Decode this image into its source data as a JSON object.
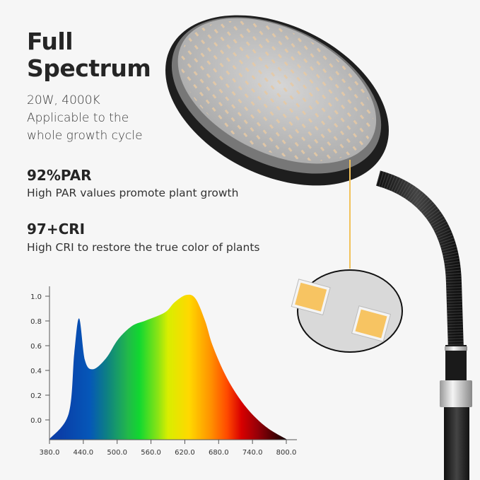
{
  "heading": {
    "line1": "Full",
    "line2": "Spectrum"
  },
  "subtitle": {
    "line1": "20W, 4000K",
    "line2": "Applicable to the",
    "line3": "whole growth cycle"
  },
  "features": [
    {
      "title": "92%PAR",
      "text": "High PAR values promote plant growth"
    },
    {
      "title": "97+CRI",
      "text": "High CRI to restore the true color of plants"
    }
  ],
  "colors": {
    "background": "#f6f6f6",
    "callout_line": "#f2c25a",
    "led": "#f7c462",
    "lamp_body": "#1e1e1e"
  },
  "icons": [
    "lamp-head-illustration",
    "gooseneck-illustration",
    "led-closeup-illustration"
  ],
  "chart_data": {
    "type": "area",
    "title": "",
    "xlabel": "",
    "ylabel": "",
    "xlim": [
      380,
      800
    ],
    "ylim": [
      -0.16,
      1.05
    ],
    "x_ticks": [
      "380.0",
      "440.0",
      "500.0",
      "560.0",
      "620.0",
      "680.0",
      "740.0",
      "800.0"
    ],
    "y_ticks": [
      "0.0",
      "0.2",
      "0.4",
      "0.6",
      "0.8",
      "1.0"
    ],
    "grid": false,
    "fill": "visible-spectrum gradient",
    "x": [
      380,
      414,
      424,
      432.6,
      443,
      457.7,
      480.6,
      501.5,
      526.5,
      551.6,
      585,
      601.7,
      622.5,
      639,
      656,
      668.6,
      689,
      710,
      731,
      752,
      773,
      800
    ],
    "y": [
      -0.155,
      0.05,
      0.54,
      0.82,
      0.48,
      0.41,
      0.5,
      0.65,
      0.76,
      0.805,
      0.87,
      0.95,
      1.01,
      0.98,
      0.8,
      0.61,
      0.39,
      0.22,
      0.09,
      -0.01,
      -0.085,
      -0.155
    ]
  }
}
